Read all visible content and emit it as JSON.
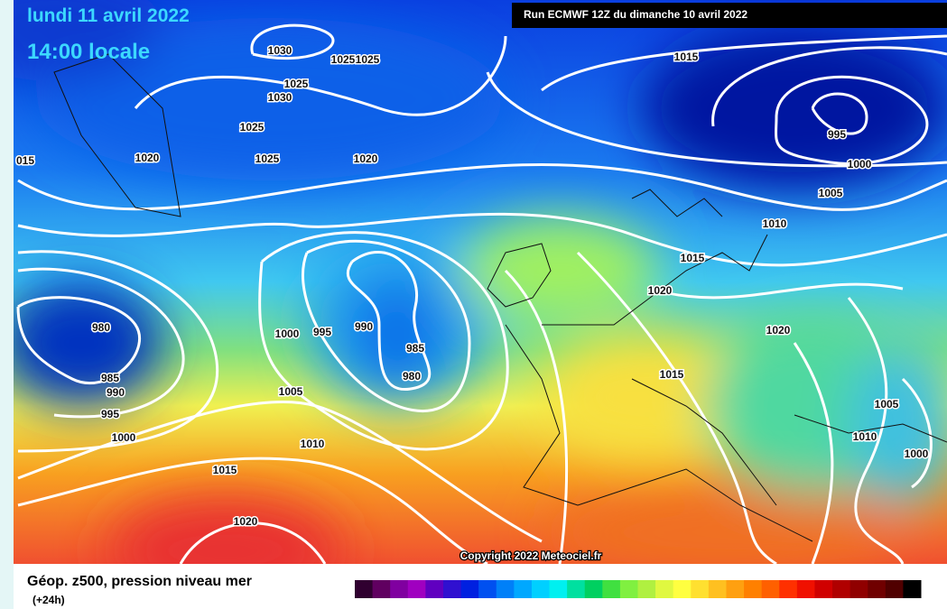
{
  "header": {
    "date": "lundi 11 avril 2022",
    "time": "14:00 locale"
  },
  "run": "Run ECMWF 12Z du dimanche 10 avril 2022",
  "isobar_labels": [
    "1030",
    "1025",
    "1025",
    "1025",
    "1030",
    "1025",
    "1025",
    "1020",
    "1020",
    "015",
    "1015",
    "995",
    "1000",
    "1005",
    "1010",
    "1015",
    "1020",
    "1020",
    "1015",
    "1005",
    "1010",
    "1000",
    "980",
    "985",
    "990",
    "995",
    "1000",
    "1000",
    "995",
    "990",
    "985",
    "980",
    "1005",
    "1010",
    "1015",
    "1020"
  ],
  "copyright": "Copyright 2022 Meteociel.fr",
  "legend": {
    "title": "Géop. z500, pression niveau mer",
    "step": "(+24h)"
  }
}
